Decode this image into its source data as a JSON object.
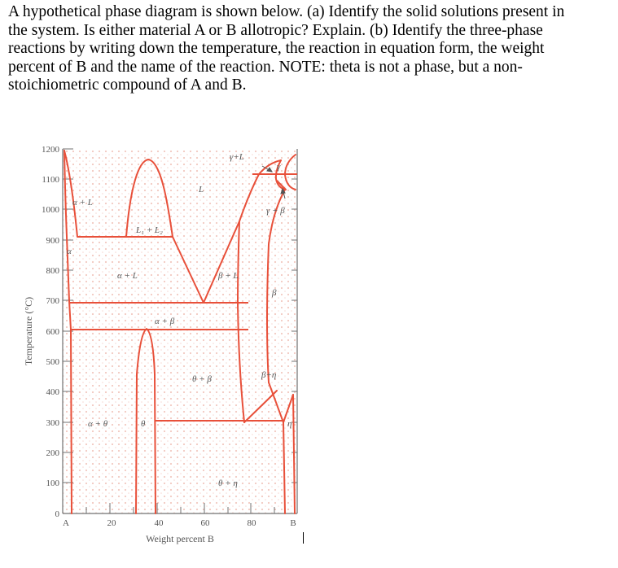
{
  "question": {
    "lines": [
      "A hypothetical phase diagram is shown below.  (a)  Identify the solid solutions present in",
      "the system.  Is either material A or B allotropic?  Explain.  (b)  Identify the three-phase",
      "reactions by writing down the temperature, the reaction in equation form, the weight",
      "percent of B and the name of the reaction. NOTE: theta is not a phase, but a non-",
      "stoichiometric compound of A and B."
    ]
  },
  "diagram": {
    "ylabel": "Temperature (°C)",
    "xlabel": "Weight percent B",
    "y_ticks": [
      "1200",
      "1100",
      "1000",
      "900",
      "800",
      "700",
      "600",
      "500",
      "400",
      "300",
      "200",
      "100",
      "0"
    ],
    "x_ticks": [
      "A",
      "20",
      "40",
      "60",
      "80",
      "B"
    ],
    "regions": {
      "gamma_L": "γ+L",
      "gamma": "γ",
      "L": "L",
      "alpha_L_top": "α + L",
      "gamma_beta": "γ + β",
      "L1_L2": "L₁ + L₂",
      "alpha": "α",
      "alpha_L": "α + L",
      "beta_L": "β + L",
      "beta": "β",
      "alpha_beta": "α + β",
      "theta_beta": "θ + β",
      "beta_eta": "β+η",
      "alpha_theta": "α +  θ",
      "theta": "θ",
      "eta": "η",
      "theta_eta": "θ + η"
    },
    "colors": {
      "phase_line": "#e8503a",
      "axis": "#707070",
      "grid_dot": "#f2c8c0",
      "label": "#555555"
    }
  }
}
